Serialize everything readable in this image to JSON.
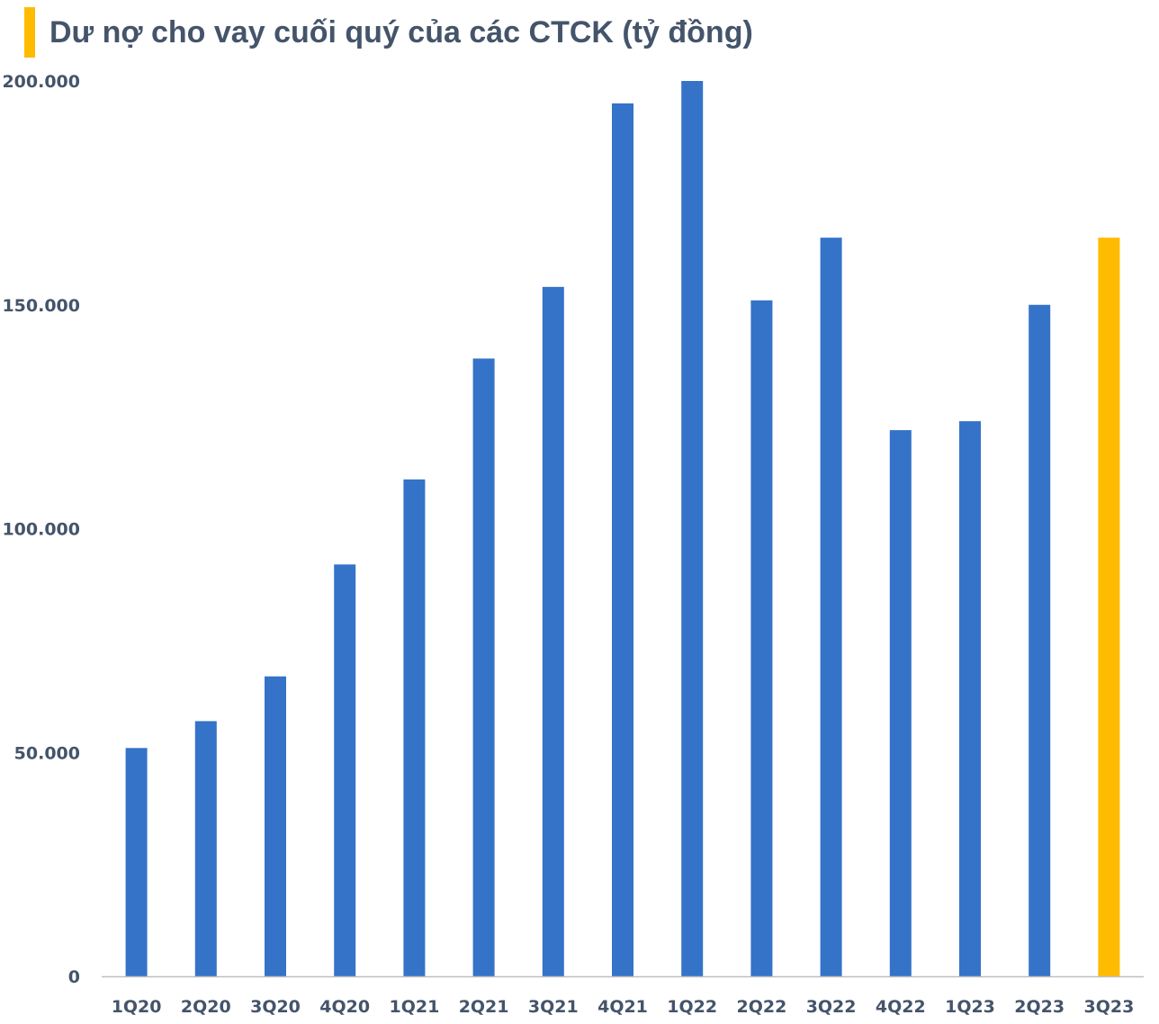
{
  "chart_data": {
    "type": "bar",
    "title": "Dư nợ cho vay cuối quý của các CTCK (tỷ đồng)",
    "xlabel": "",
    "ylabel": "",
    "categories": [
      "1Q20",
      "2Q20",
      "3Q20",
      "4Q20",
      "1Q21",
      "2Q21",
      "3Q21",
      "4Q21",
      "1Q22",
      "2Q22",
      "3Q22",
      "4Q22",
      "1Q23",
      "2Q23",
      "3Q23"
    ],
    "values": [
      51000,
      57000,
      67000,
      92000,
      111000,
      138000,
      154000,
      195000,
      200000,
      151000,
      165000,
      122000,
      124000,
      150000,
      165000
    ],
    "ylim": [
      0,
      200000
    ],
    "yticks": [
      0,
      50000,
      100000,
      150000,
      200000
    ],
    "ytick_labels": [
      "0",
      "50.000",
      "100.000",
      "150.000",
      "200.000"
    ],
    "grid": false,
    "legend": "none",
    "bar_color": "#3473c8",
    "highlight_color": "#ffbb00",
    "highlight_category": "3Q23",
    "axis_color": "#bfbfbf",
    "text_color": "#44546a"
  }
}
